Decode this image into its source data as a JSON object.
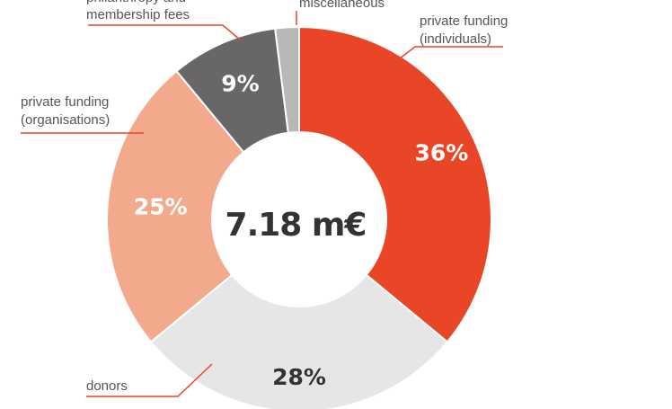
{
  "chart_data": {
    "type": "pie",
    "variant": "donut",
    "total_label": "7.18 m€",
    "slices": [
      {
        "label_lines": [
          "private funding",
          "(individuals)"
        ],
        "value": 36,
        "value_label": "36%",
        "color": "#e84627",
        "text_color": "#ffffff"
      },
      {
        "label_lines": [
          "donors"
        ],
        "value": 28,
        "value_label": "28%",
        "color": "#e6e6e6",
        "text_color": "#333333"
      },
      {
        "label_lines": [
          "private funding",
          "(organisations)"
        ],
        "value": 25,
        "value_label": "25%",
        "color": "#f3a98b",
        "text_color": "#ffffff"
      },
      {
        "label_lines": [
          "philanthropy and",
          "membership fees"
        ],
        "value": 9,
        "value_label": "9%",
        "color": "#686666",
        "text_color": "#ffffff"
      },
      {
        "label_lines": [
          "miscellaneous"
        ],
        "value": 2,
        "value_label": "",
        "color": "#b8b8b8",
        "text_color": "#333333"
      }
    ],
    "leader_line_color": "#e84627"
  }
}
